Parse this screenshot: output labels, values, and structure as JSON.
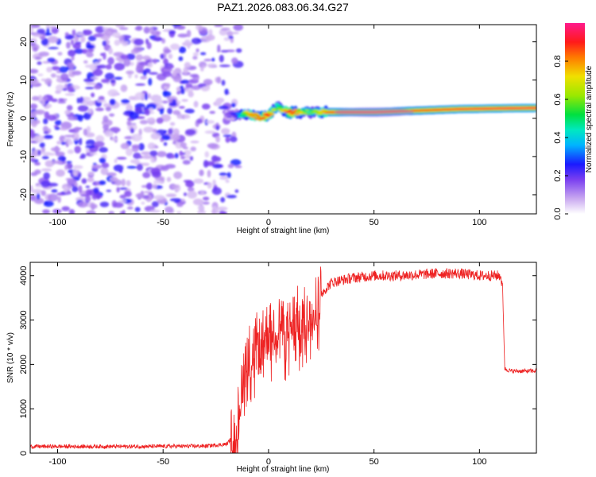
{
  "title": "PAZ1.2026.083.06.34.G27",
  "chart_data": [
    {
      "type": "heatmap",
      "name": "spectrogram",
      "xlabel": "Height of straight line (km)",
      "ylabel": "Frequency (Hz)",
      "xlim": [
        -113,
        127
      ],
      "ylim": [
        -25,
        24.5
      ],
      "xticks": [
        -100,
        -50,
        0,
        50,
        100
      ],
      "yticks": [
        -20,
        -10,
        0,
        10,
        20
      ],
      "xtick_labels": [
        "-100",
        "-50",
        "0",
        "50",
        "100"
      ],
      "ytick_labels": [
        "-20",
        "-10",
        "0",
        "10",
        "20"
      ],
      "colorbar": {
        "label": "Normalized spectral amplitude",
        "range": [
          0,
          1
        ],
        "ticks": [
          0,
          0.2,
          0.4,
          0.6,
          0.8
        ],
        "tick_labels": [
          "0.0",
          "0.2",
          "0.4",
          "0.6",
          "0.8"
        ]
      },
      "ridge": [
        {
          "x": -20,
          "f": 1.0,
          "amp": 0.15
        },
        {
          "x": -15,
          "f": 0.8,
          "amp": 0.28
        },
        {
          "x": -10,
          "f": 1.3,
          "amp": 0.75
        },
        {
          "x": -5,
          "f": 0.3,
          "amp": 0.85
        },
        {
          "x": 0,
          "f": 0.8,
          "amp": 0.9
        },
        {
          "x": 4,
          "f": 3.0,
          "amp": 0.55
        },
        {
          "x": 10,
          "f": 1.5,
          "amp": 0.92
        },
        {
          "x": 20,
          "f": 1.6,
          "amp": 0.55
        },
        {
          "x": 30,
          "f": 1.6,
          "amp": 0.9
        },
        {
          "x": 50,
          "f": 1.6,
          "amp": 0.92
        },
        {
          "x": 70,
          "f": 2.0,
          "amp": 0.88
        },
        {
          "x": 90,
          "f": 2.4,
          "amp": 0.93
        },
        {
          "x": 112,
          "f": 2.6,
          "amp": 0.95
        },
        {
          "x": 127,
          "f": 2.7,
          "amp": 0.95
        }
      ]
    },
    {
      "type": "line",
      "name": "snr",
      "xlabel": "Height of straight line (km)",
      "ylabel": "SNR (10 * v/v)",
      "xlim": [
        -113,
        127
      ],
      "ylim": [
        0,
        4300
      ],
      "xticks": [
        -100,
        -50,
        0,
        50,
        100
      ],
      "yticks": [
        0,
        1000,
        2000,
        3000,
        4000
      ],
      "xtick_labels": [
        "-100",
        "-50",
        "0",
        "50",
        "100"
      ],
      "ytick_labels": [
        "0",
        "1000",
        "2000",
        "3000",
        "4000"
      ],
      "color": "#ee2222",
      "x": [
        -113,
        -60,
        -30,
        -20,
        -16,
        -14,
        -12,
        -10,
        -8,
        -6,
        -4,
        -2,
        0,
        2,
        4,
        6,
        8,
        10,
        12,
        14,
        16,
        18,
        20,
        25,
        30,
        40,
        50,
        60,
        70,
        80,
        90,
        100,
        110,
        111,
        112,
        115,
        120,
        127
      ],
      "values": [
        150,
        150,
        160,
        200,
        400,
        1000,
        1800,
        2300,
        2200,
        2500,
        2400,
        2600,
        2800,
        2700,
        2900,
        2900,
        2700,
        2800,
        3000,
        3100,
        2900,
        3200,
        3200,
        3600,
        3850,
        3950,
        4000,
        4000,
        4020,
        4050,
        4050,
        4000,
        4000,
        3700,
        1900,
        1850,
        1850,
        1850
      ]
    }
  ]
}
